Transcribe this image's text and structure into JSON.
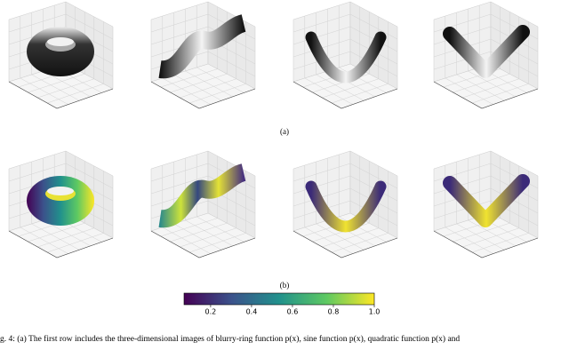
{
  "figure": {
    "label_a": "(a)",
    "label_b": "(b)",
    "colorbar": {
      "lim": [
        0.07,
        1.0
      ],
      "ticks": [
        0.2,
        0.4,
        0.6,
        0.8,
        {
          "value": 1.0,
          "label": "1.0"
        }
      ]
    },
    "caption": "g. 4: (a) The first row includes the three-dimensional images of blurry-ring function p(x), sine function p(x), quadratic function p(x) and"
  }
}
